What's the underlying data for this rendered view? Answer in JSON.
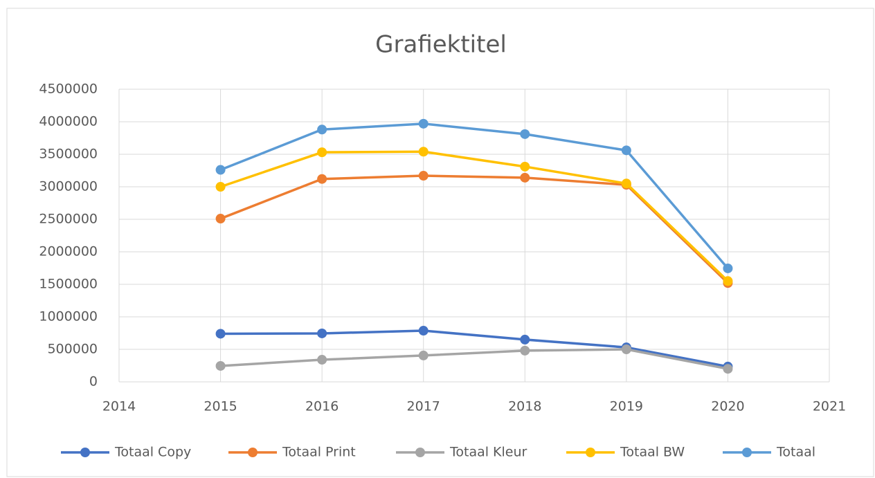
{
  "chart_data": {
    "type": "line",
    "title": "Grafiektitel",
    "x": [
      2015,
      2016,
      2017,
      2018,
      2019,
      2020
    ],
    "series": [
      {
        "name": "Totaal Copy",
        "color": "#4472c4",
        "values": [
          740000,
          745000,
          787000,
          650000,
          530000,
          235000
        ]
      },
      {
        "name": "Totaal Print",
        "color": "#ed7d31",
        "values": [
          2510000,
          3120000,
          3170000,
          3140000,
          3030000,
          1520000
        ]
      },
      {
        "name": "Totaal Kleur",
        "color": "#a5a5a5",
        "values": [
          245000,
          340000,
          405000,
          480000,
          500000,
          200000
        ]
      },
      {
        "name": "Totaal BW",
        "color": "#ffc000",
        "values": [
          3000000,
          3530000,
          3540000,
          3310000,
          3050000,
          1550000
        ]
      },
      {
        "name": "Totaal",
        "color": "#5b9bd5",
        "values": [
          3260000,
          3880000,
          3970000,
          3810000,
          3560000,
          1745000
        ]
      }
    ],
    "xlim": [
      2014,
      2021
    ],
    "xticks": [
      2014,
      2015,
      2016,
      2017,
      2018,
      2019,
      2020,
      2021
    ],
    "ylim": [
      0,
      4500000
    ],
    "yticks": [
      0,
      500000,
      1000000,
      1500000,
      2000000,
      2500000,
      3000000,
      3500000,
      4000000,
      4500000
    ],
    "grid": true,
    "legend": "bottom"
  }
}
